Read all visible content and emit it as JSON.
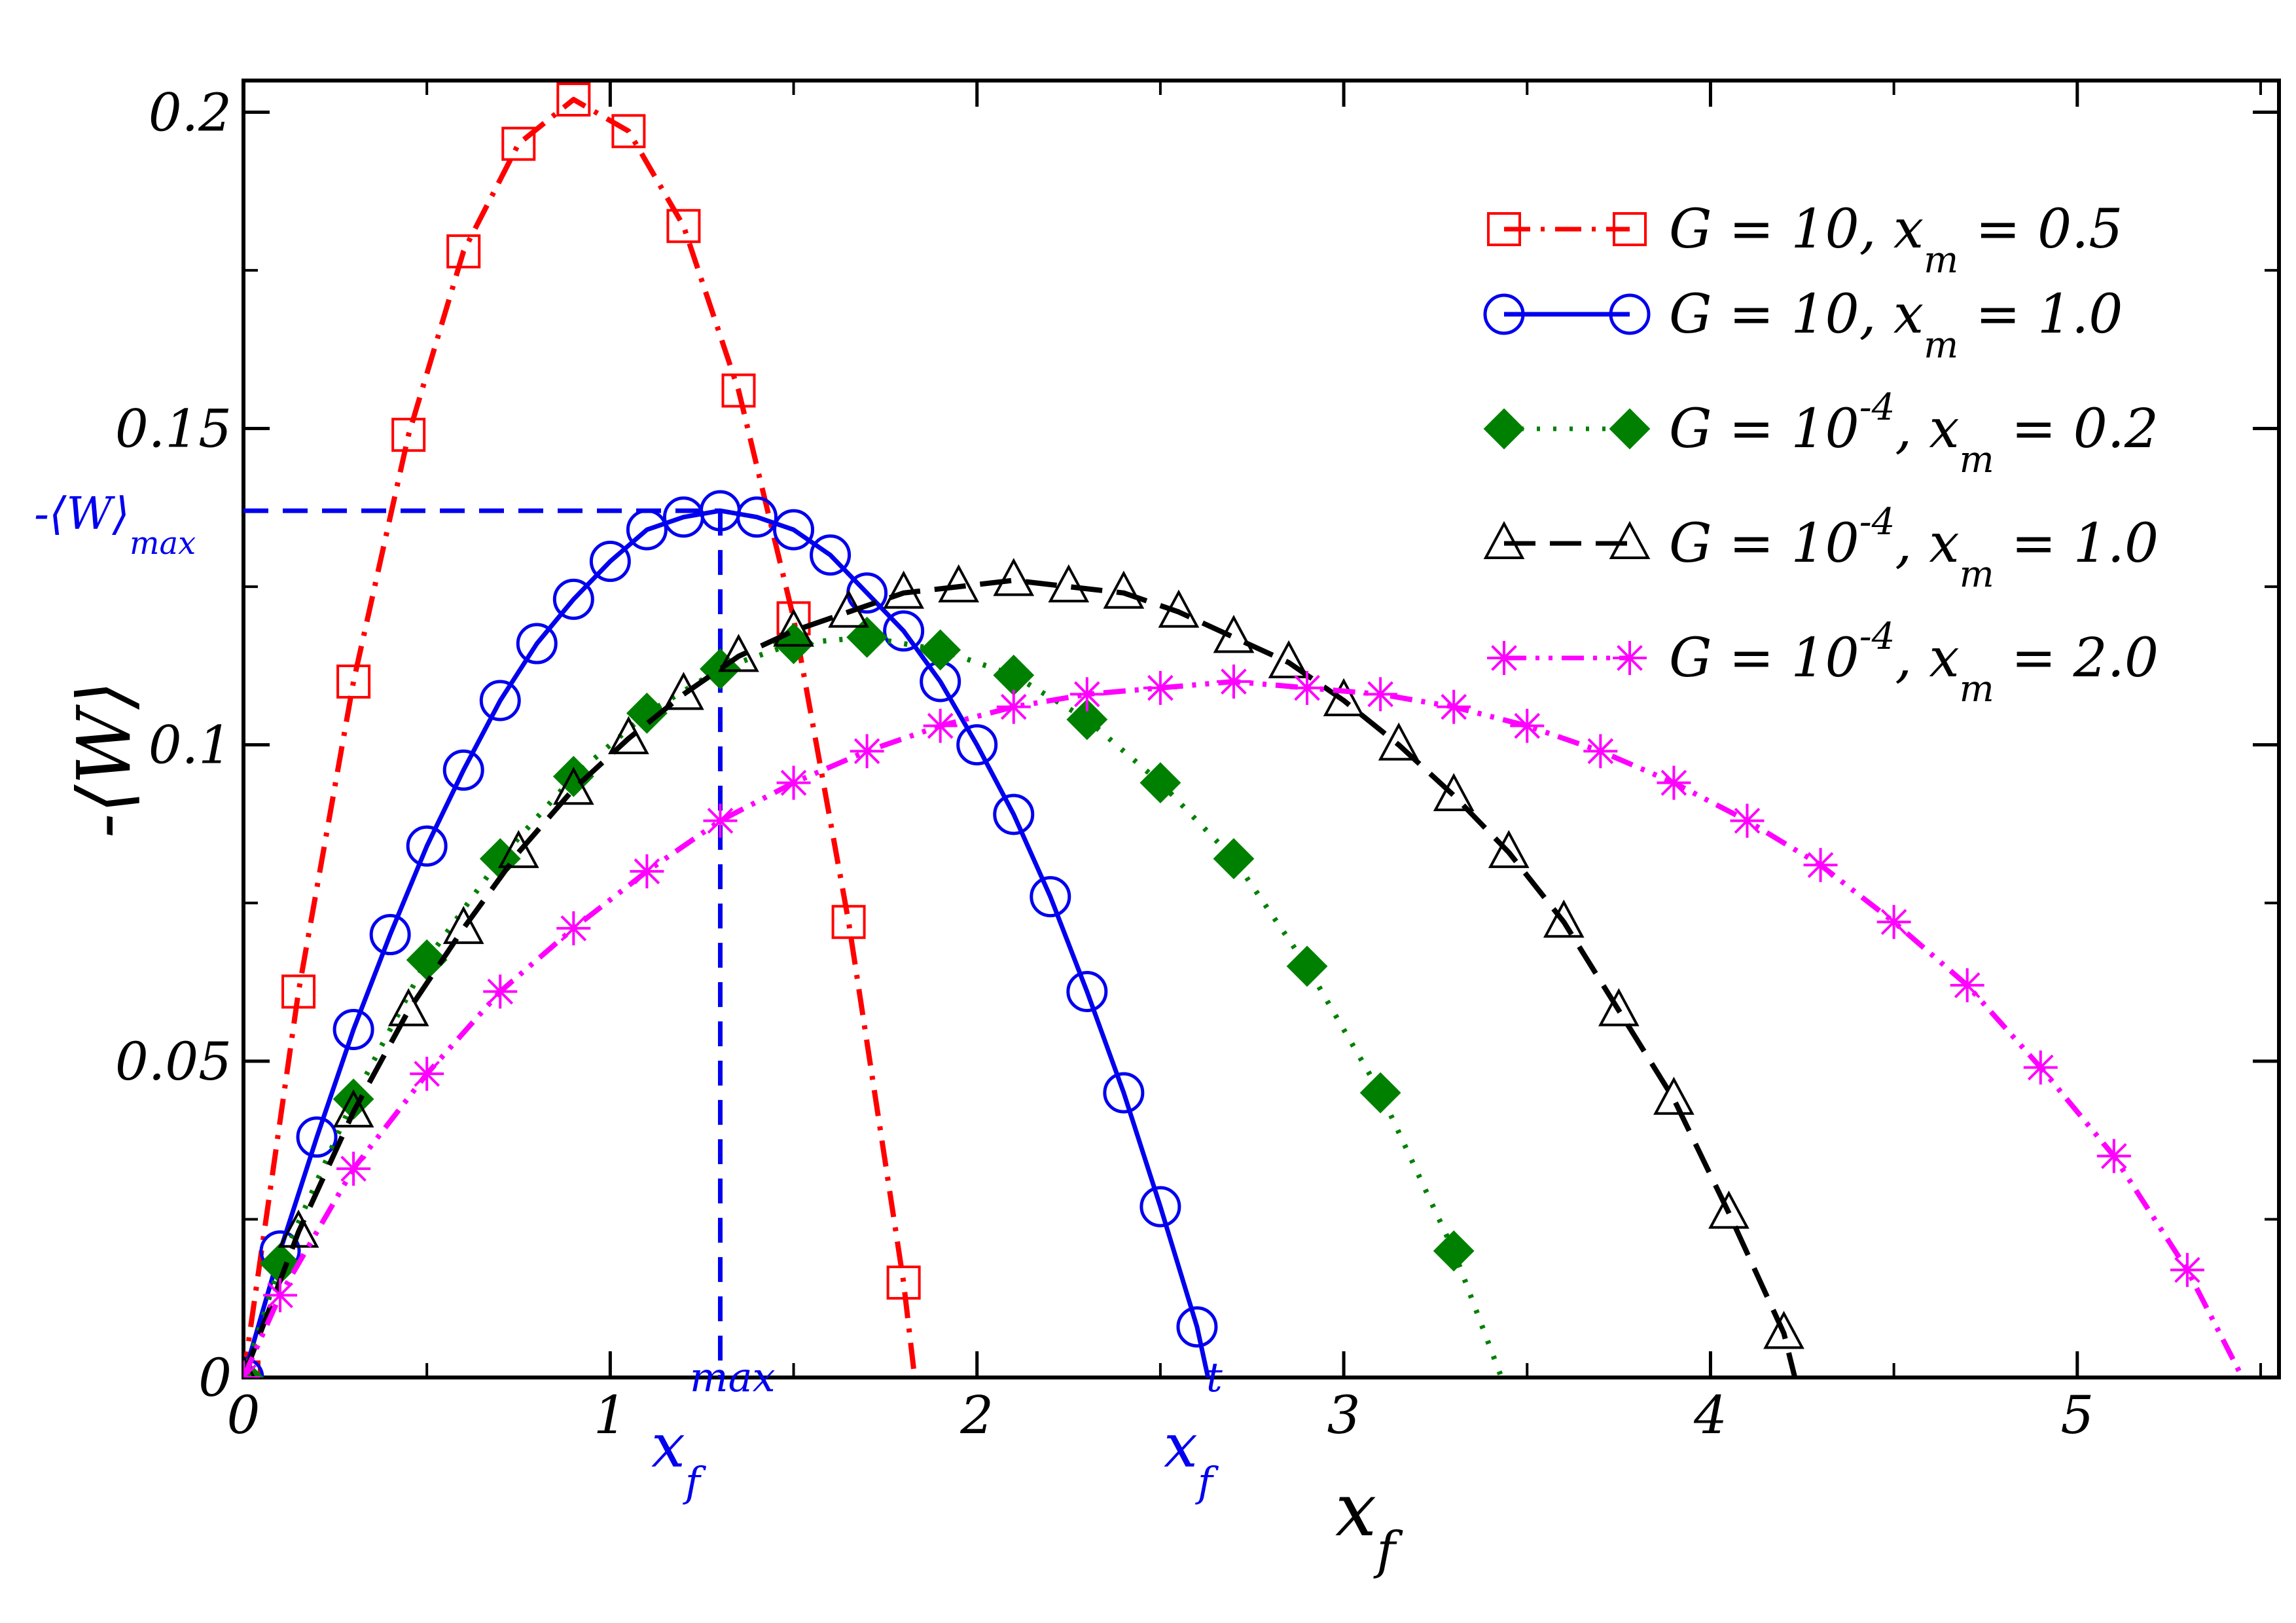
{
  "chart_data": {
    "type": "line",
    "xlabel": "x",
    "xlabel_sub": "f",
    "ylabel": "-⟨W⟩",
    "xlim": [
      0,
      5.55
    ],
    "ylim": [
      0,
      0.205
    ],
    "x_ticks": [
      {
        "value": 0,
        "label": "0"
      },
      {
        "value": 1,
        "label": "1"
      },
      {
        "value": 2,
        "label": "2"
      },
      {
        "value": 3,
        "label": "3"
      },
      {
        "value": 4,
        "label": "4"
      },
      {
        "value": 5,
        "label": "5"
      }
    ],
    "y_ticks": [
      {
        "value": 0,
        "label": "0"
      },
      {
        "value": 0.05,
        "label": "0.05"
      },
      {
        "value": 0.1,
        "label": "0.1"
      },
      {
        "value": 0.15,
        "label": "0.15"
      },
      {
        "value": 0.2,
        "label": "0.2"
      }
    ],
    "legend_position": "top-right",
    "series": [
      {
        "name": "G = 10, x_m = 0.5",
        "label_parts": [
          "G = 10, x",
          "m",
          " = 0.5"
        ],
        "color": "#ff0000",
        "marker": "open-square",
        "line_style": "dash-dot",
        "x": [
          0,
          0.15,
          0.3,
          0.45,
          0.6,
          0.75,
          0.9,
          1.05,
          1.2,
          1.35,
          1.5,
          1.65,
          1.8,
          1.83
        ],
        "y": [
          0,
          0.061,
          0.11,
          0.149,
          0.178,
          0.195,
          0.202,
          0.197,
          0.182,
          0.156,
          0.12,
          0.072,
          0.015,
          0.0
        ]
      },
      {
        "name": "G = 10, x_m = 1.0",
        "label_parts": [
          "G = 10, x",
          "m",
          " = 1.0"
        ],
        "color": "#0000ee",
        "marker": "open-circle",
        "line_style": "solid",
        "x": [
          0,
          0.1,
          0.2,
          0.3,
          0.4,
          0.5,
          0.6,
          0.7,
          0.8,
          0.9,
          1.0,
          1.1,
          1.2,
          1.3,
          1.4,
          1.5,
          1.6,
          1.7,
          1.8,
          1.9,
          2.0,
          2.1,
          2.2,
          2.3,
          2.4,
          2.5,
          2.6,
          2.63
        ],
        "y": [
          0,
          0.02,
          0.038,
          0.055,
          0.07,
          0.084,
          0.096,
          0.107,
          0.116,
          0.123,
          0.129,
          0.134,
          0.136,
          0.137,
          0.136,
          0.134,
          0.13,
          0.124,
          0.118,
          0.11,
          0.1,
          0.089,
          0.076,
          0.061,
          0.045,
          0.027,
          0.008,
          0.0
        ]
      },
      {
        "name": "G = 10^-4, x_m = 0.2",
        "label_parts": [
          "G = 10",
          "-4",
          ", x",
          "m",
          " = 0.2"
        ],
        "color": "#008000",
        "marker": "filled-diamond",
        "line_style": "dotted",
        "x": [
          0,
          0.1,
          0.3,
          0.5,
          0.7,
          0.9,
          1.1,
          1.3,
          1.5,
          1.7,
          1.9,
          2.1,
          2.3,
          2.5,
          2.7,
          2.9,
          3.1,
          3.3,
          3.43
        ],
        "y": [
          0,
          0.018,
          0.044,
          0.066,
          0.082,
          0.095,
          0.105,
          0.112,
          0.116,
          0.117,
          0.115,
          0.111,
          0.104,
          0.094,
          0.082,
          0.065,
          0.045,
          0.02,
          0.0
        ]
      },
      {
        "name": "G = 10^-4, x_m = 1.0",
        "label_parts": [
          "G = 10",
          "-4",
          ", x",
          "m",
          " = 1.0"
        ],
        "color": "#000000",
        "marker": "open-triangle",
        "line_style": "dashed",
        "x": [
          0,
          0.15,
          0.3,
          0.45,
          0.6,
          0.75,
          0.9,
          1.05,
          1.2,
          1.35,
          1.5,
          1.65,
          1.8,
          1.95,
          2.1,
          2.25,
          2.4,
          2.55,
          2.7,
          2.85,
          3.0,
          3.15,
          3.3,
          3.45,
          3.6,
          3.75,
          3.9,
          4.05,
          4.2,
          4.23
        ],
        "y": [
          0,
          0.023,
          0.042,
          0.058,
          0.071,
          0.083,
          0.093,
          0.101,
          0.108,
          0.114,
          0.118,
          0.121,
          0.124,
          0.125,
          0.126,
          0.125,
          0.124,
          0.121,
          0.117,
          0.113,
          0.107,
          0.1,
          0.092,
          0.083,
          0.072,
          0.058,
          0.044,
          0.026,
          0.007,
          0.0
        ]
      },
      {
        "name": "G = 10^-4, x_m = 2.0",
        "label_parts": [
          "G = 10",
          "-4",
          ", x",
          "m",
          " = 2.0"
        ],
        "color": "#ff00ff",
        "marker": "asterisk",
        "line_style": "dash-dot-dot",
        "x": [
          0,
          0.1,
          0.3,
          0.5,
          0.7,
          0.9,
          1.1,
          1.3,
          1.5,
          1.7,
          1.9,
          2.1,
          2.3,
          2.5,
          2.7,
          2.9,
          3.1,
          3.3,
          3.5,
          3.7,
          3.9,
          4.1,
          4.3,
          4.5,
          4.7,
          4.9,
          5.1,
          5.3,
          5.45
        ],
        "y": [
          0,
          0.013,
          0.033,
          0.048,
          0.061,
          0.071,
          0.08,
          0.088,
          0.094,
          0.099,
          0.103,
          0.106,
          0.108,
          0.109,
          0.11,
          0.109,
          0.108,
          0.106,
          0.103,
          0.099,
          0.094,
          0.088,
          0.081,
          0.072,
          0.062,
          0.049,
          0.035,
          0.017,
          0.0
        ]
      }
    ],
    "annotations": {
      "wmax_value": 0.137,
      "xfmax_value": 1.3,
      "xft_value": 2.63,
      "wmax_label_prefix": "-⟨W⟩",
      "wmax_label_sub": "max",
      "xfmax_label_base": "x",
      "xfmax_label_sub": "f",
      "xfmax_label_sup": "max",
      "xft_label_base": "x",
      "xft_label_sub": "f",
      "xft_label_sup": "t",
      "color": "#0000ee"
    }
  }
}
